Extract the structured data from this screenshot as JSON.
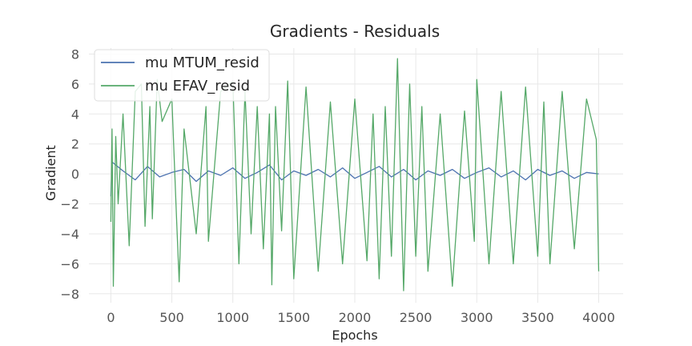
{
  "chart_data": {
    "type": "line",
    "title": "Gradients - Residuals",
    "xlabel": "Epochs",
    "ylabel": "Gradient",
    "xlim": [
      -180,
      4200
    ],
    "ylim": [
      -8.6,
      8.4
    ],
    "xticks": [
      0,
      500,
      1000,
      1500,
      2000,
      2500,
      3000,
      3500,
      4000
    ],
    "yticks": [
      -8,
      -6,
      -4,
      -2,
      0,
      2,
      4,
      6,
      8
    ],
    "grid": true,
    "legend_position": "top-left",
    "series": [
      {
        "name": "mu MTUM_resid",
        "color": "#4c72b0",
        "x": [
          0,
          10,
          100,
          200,
          300,
          400,
          500,
          600,
          700,
          800,
          900,
          1000,
          1100,
          1200,
          1300,
          1400,
          1500,
          1600,
          1700,
          1800,
          1900,
          2000,
          2100,
          2200,
          2300,
          2400,
          2500,
          2600,
          2700,
          2800,
          2900,
          3000,
          3100,
          3200,
          3300,
          3400,
          3500,
          3600,
          3700,
          3800,
          3900,
          4000
        ],
        "y": [
          -1.5,
          0.8,
          0.2,
          -0.4,
          0.5,
          -0.2,
          0.1,
          0.3,
          -0.5,
          0.2,
          -0.1,
          0.4,
          -0.3,
          0.1,
          0.6,
          -0.4,
          0.2,
          -0.1,
          0.3,
          -0.2,
          0.4,
          -0.3,
          0.1,
          0.5,
          -0.2,
          0.3,
          -0.4,
          0.2,
          -0.1,
          0.3,
          -0.3,
          0.1,
          0.4,
          -0.2,
          0.2,
          -0.4,
          0.3,
          -0.1,
          0.2,
          -0.3,
          0.1,
          0.0
        ]
      },
      {
        "name": "mu EFAV_resid",
        "color": "#55a868",
        "x": [
          0,
          10,
          20,
          40,
          60,
          100,
          150,
          200,
          250,
          280,
          320,
          340,
          380,
          420,
          500,
          540,
          560,
          600,
          700,
          780,
          800,
          900,
          1000,
          1050,
          1100,
          1150,
          1200,
          1250,
          1300,
          1320,
          1350,
          1400,
          1450,
          1500,
          1600,
          1700,
          1800,
          1900,
          2000,
          2100,
          2150,
          2200,
          2250,
          2300,
          2350,
          2400,
          2450,
          2500,
          2550,
          2600,
          2700,
          2800,
          2900,
          2980,
          3000,
          3100,
          3200,
          3300,
          3400,
          3500,
          3550,
          3600,
          3700,
          3800,
          3900,
          3980,
          4000
        ],
        "y": [
          -3.2,
          3.0,
          -7.5,
          2.5,
          -2.0,
          4.0,
          -4.8,
          5.5,
          6.0,
          -3.5,
          4.5,
          -3.0,
          6.3,
          3.5,
          5.0,
          -3.2,
          -7.2,
          3.0,
          -4.0,
          4.5,
          -4.5,
          5.5,
          6.2,
          -6.0,
          5.5,
          -4.0,
          4.5,
          -5.0,
          4.0,
          -7.4,
          4.5,
          -3.8,
          6.2,
          -7.0,
          5.8,
          -6.5,
          4.8,
          -6.0,
          5.0,
          -5.8,
          4.0,
          -7.0,
          4.5,
          -5.5,
          7.7,
          -7.8,
          6.0,
          -5.5,
          4.5,
          -6.5,
          4.0,
          -7.5,
          4.2,
          -4.5,
          6.3,
          -6.0,
          5.5,
          -6.0,
          5.8,
          -5.5,
          4.8,
          -6.0,
          5.5,
          -5.0,
          5.0,
          2.3,
          -6.5
        ]
      }
    ]
  }
}
